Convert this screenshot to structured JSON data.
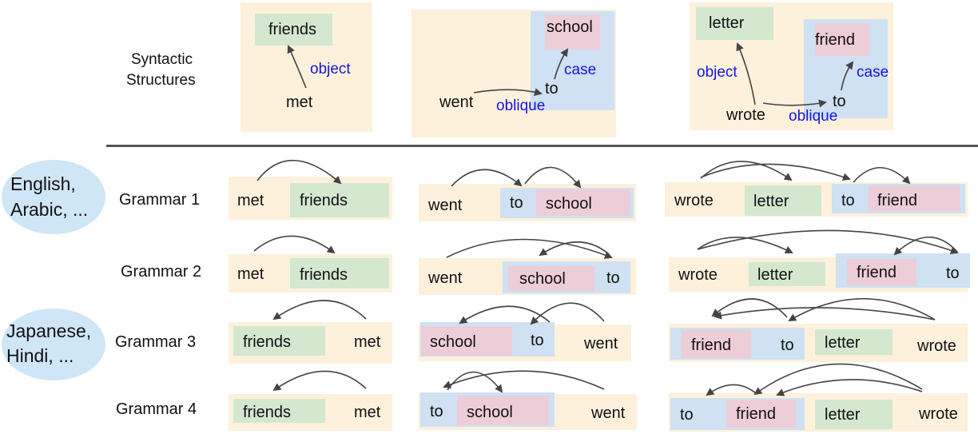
{
  "top_row": {
    "label_line1": "Syntactic",
    "label_line2": "Structures",
    "ex1": {
      "head": "met",
      "dep": "friends",
      "rel": "object"
    },
    "ex2": {
      "head": "went",
      "mid": "to",
      "dep": "school",
      "rel_oblique": "oblique",
      "rel_case": "case"
    },
    "ex3": {
      "head": "wrote",
      "obj": "letter",
      "mid": "to",
      "dep": "friend",
      "rel_object": "object",
      "rel_oblique": "oblique",
      "rel_case": "case"
    }
  },
  "languages": {
    "group1": {
      "line1": "English,",
      "line2": "Arabic, ..."
    },
    "group2": {
      "line1": "Japanese,",
      "line2": "Hindi, ..."
    }
  },
  "grammars": [
    {
      "label": "Grammar 1",
      "ex1": [
        "met",
        "friends"
      ],
      "ex2": [
        "went",
        "to",
        "school"
      ],
      "ex3": [
        "wrote",
        "letter",
        "to",
        "friend"
      ]
    },
    {
      "label": "Grammar 2",
      "ex1": [
        "met",
        "friends"
      ],
      "ex2": [
        "went",
        "school",
        "to"
      ],
      "ex3": [
        "wrote",
        "letter",
        "friend",
        "to"
      ]
    },
    {
      "label": "Grammar 3",
      "ex1": [
        "friends",
        "met"
      ],
      "ex2": [
        "school",
        "to",
        "went"
      ],
      "ex3": [
        "friend",
        "to",
        "letter",
        "wrote"
      ]
    },
    {
      "label": "Grammar 4",
      "ex1": [
        "friends",
        "met"
      ],
      "ex2": [
        "to",
        "school",
        "went"
      ],
      "ex3": [
        "to",
        "friend",
        "letter",
        "wrote"
      ]
    }
  ]
}
